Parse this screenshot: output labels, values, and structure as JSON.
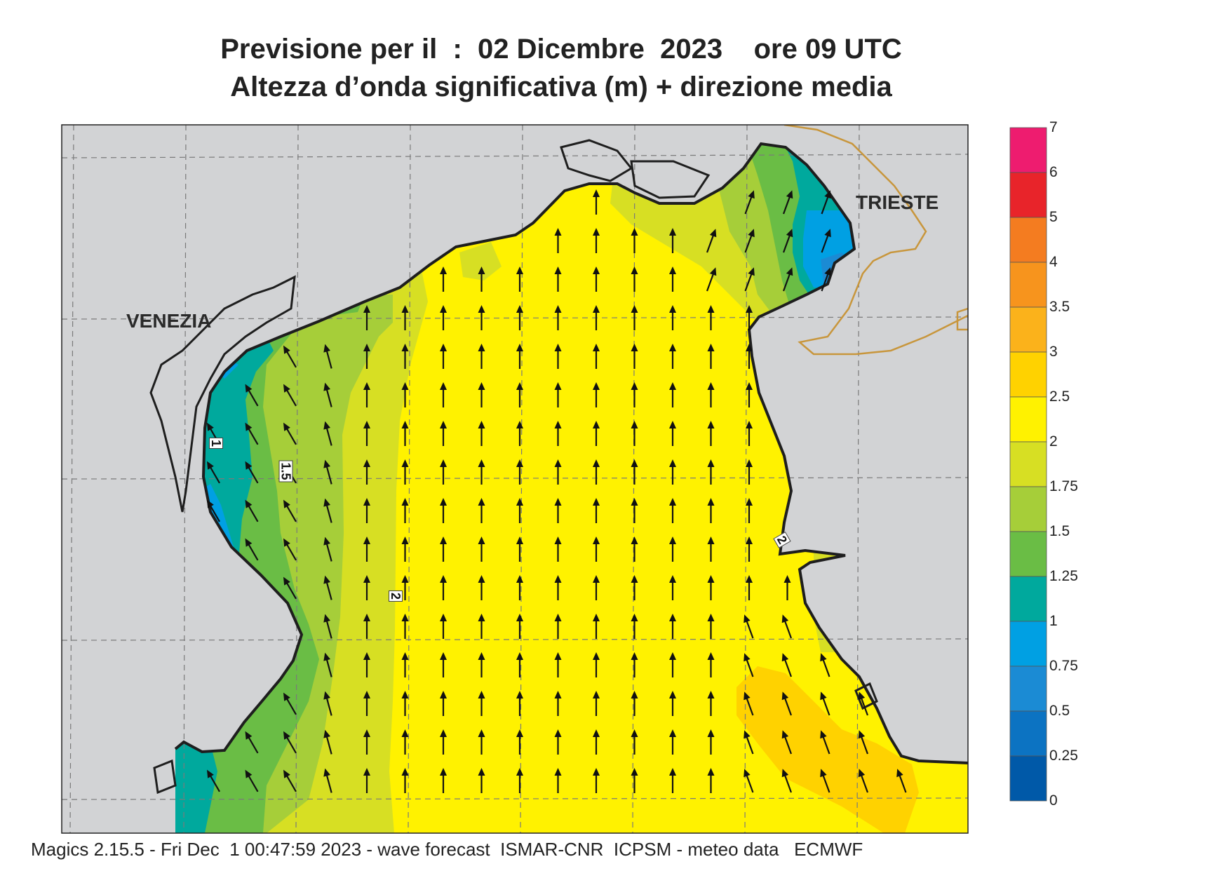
{
  "header": {
    "title_line1": "Previsione per il  :  02 Dicembre  2023    ore 09 UTC",
    "title_line2": "Altezza d’onda significativa (m) + direzione media"
  },
  "footer": {
    "text": "Magics 2.15.5 - Fri Dec  1 00:47:59 2023 - wave forecast  ISMAR-CNR  ICPSM - meteo data   ECMWF"
  },
  "map": {
    "labels": {
      "venezia": "VENEZIA",
      "trieste": "TRIESTE"
    },
    "contour_labels": {
      "c1": "1",
      "c1_5": "1.5",
      "c2a": "2",
      "c2b": "2"
    },
    "colors": {
      "land": "#d2d3d5",
      "sea_yellow": "#fff200",
      "border": "#c8963c"
    }
  },
  "colorbar": {
    "levels": [
      "7",
      "6",
      "5",
      "4",
      "3.5",
      "3",
      "2.5",
      "2",
      "1.75",
      "1.5",
      "1.25",
      "1",
      "0.75",
      "0.5",
      "0.25",
      "0"
    ],
    "colors": [
      "#ee1c6f",
      "#e8242a",
      "#f47c20",
      "#f7941d",
      "#fbb21b",
      "#ffd200",
      "#fff200",
      "#d7df23",
      "#a6ce39",
      "#6abd45",
      "#00a99d",
      "#00a0e3",
      "#1b8bd4",
      "#0c73c2",
      "#0059a8"
    ]
  }
}
